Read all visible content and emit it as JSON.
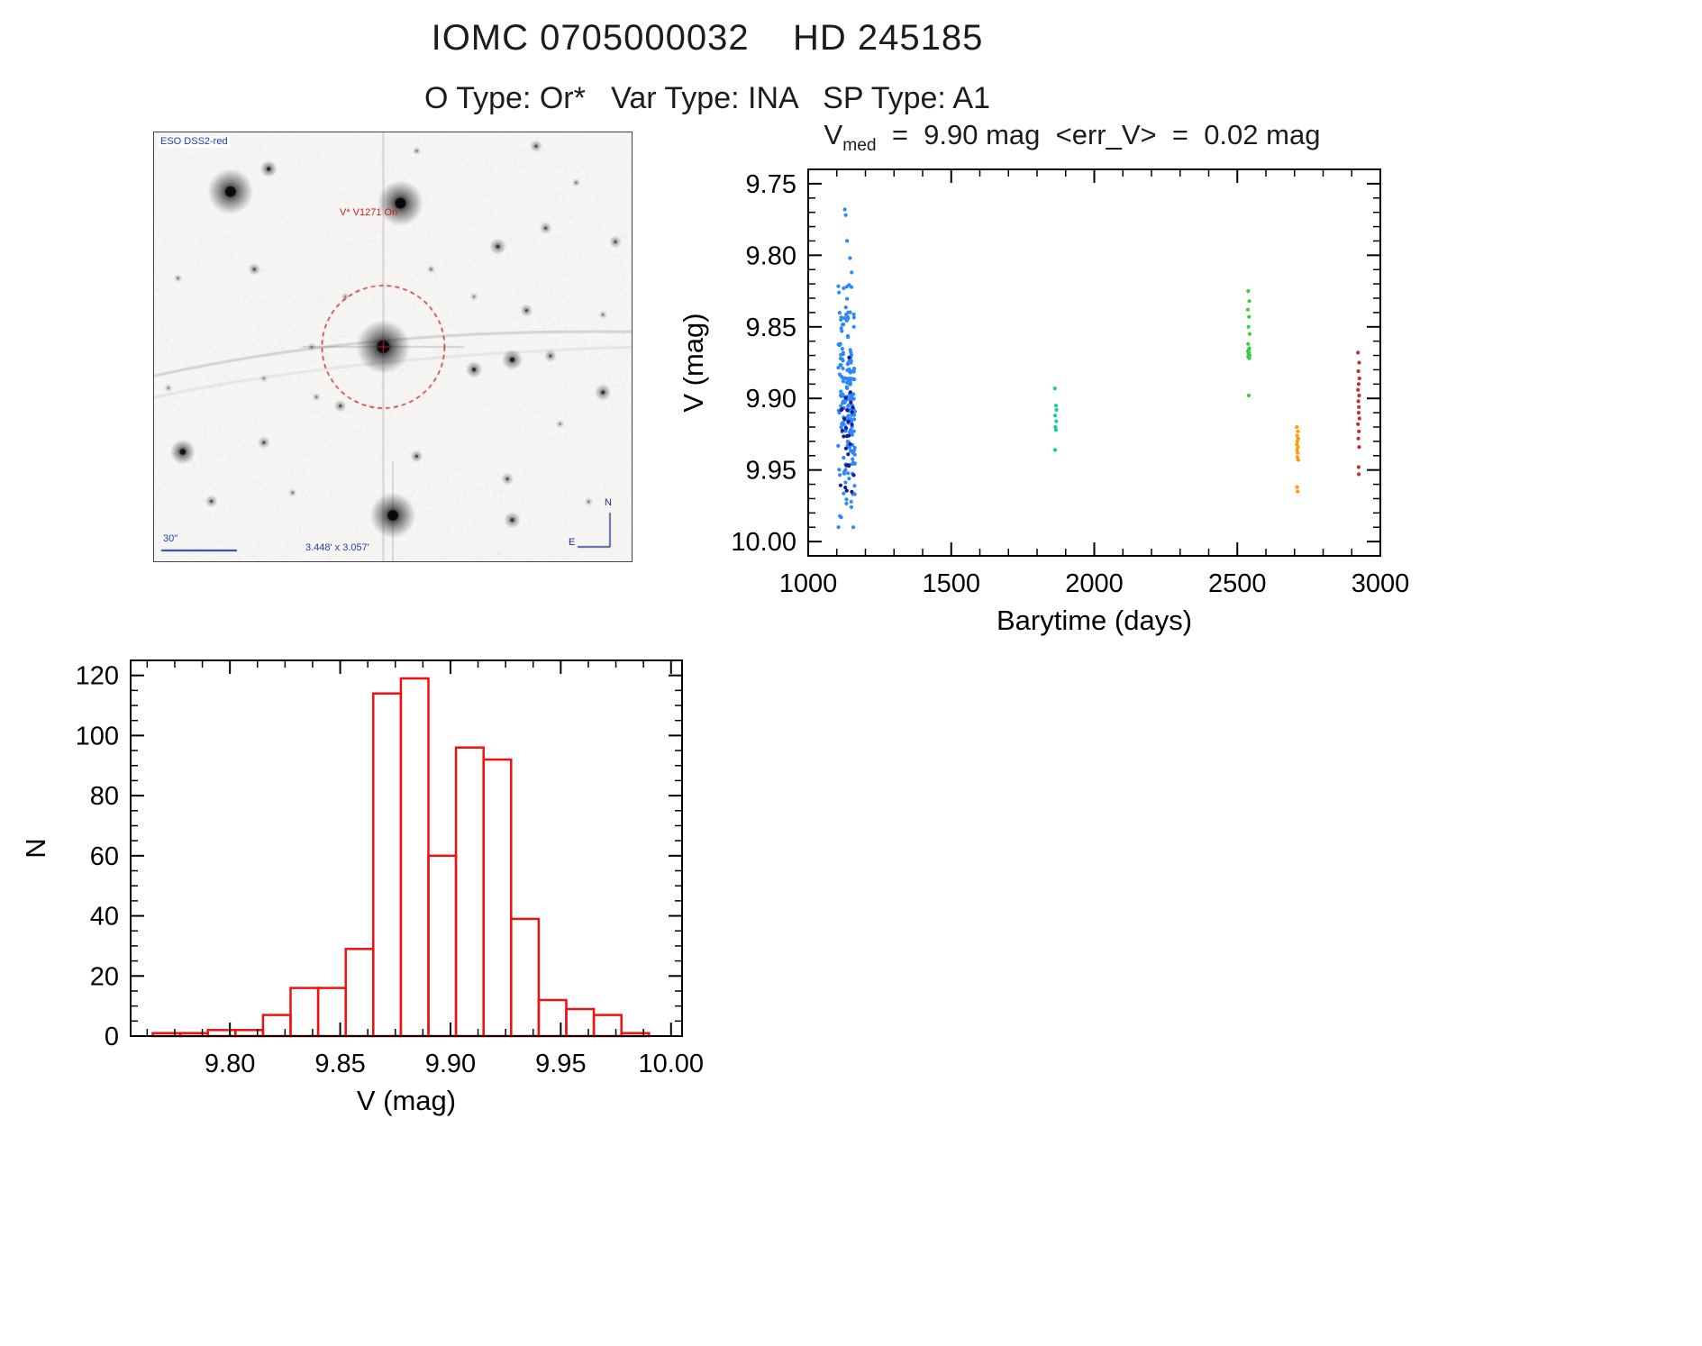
{
  "page": {
    "title": "IOMC 0705000032    HD 245185",
    "subtitle": "O Type: Or*   Var Type: INA   SP Type: A1"
  },
  "starfield": {
    "survey_label": "ESO DSS2-red",
    "target_label": "V* V1271 Ori",
    "scale_label": "30\"",
    "fov_label": "3.448' x 3.057'",
    "compass_n": "N",
    "compass_e": "E",
    "circle_color": "#bb2222",
    "circle": [
      0.48,
      0.5
    ],
    "circle_r": 68,
    "noise_seed": 3,
    "stars": [
      [
        0.16,
        0.138,
        11,
        0.95
      ],
      [
        0.24,
        0.085,
        4,
        0.7
      ],
      [
        0.516,
        0.165,
        11,
        0.97
      ],
      [
        0.55,
        0.043,
        2,
        0.4
      ],
      [
        0.8,
        0.032,
        3,
        0.5
      ],
      [
        0.884,
        0.117,
        2,
        0.4
      ],
      [
        0.72,
        0.266,
        4,
        0.6
      ],
      [
        0.82,
        0.223,
        3,
        0.5
      ],
      [
        0.966,
        0.255,
        3,
        0.5
      ],
      [
        0.05,
        0.34,
        2,
        0.4
      ],
      [
        0.21,
        0.319,
        3,
        0.5
      ],
      [
        0.58,
        0.319,
        2,
        0.4
      ],
      [
        0.67,
        0.383,
        2,
        0.35
      ],
      [
        0.4,
        0.383,
        2,
        0.35
      ],
      [
        0.48,
        0.5,
        13,
        1.0,
        1
      ],
      [
        0.67,
        0.553,
        4,
        0.65
      ],
      [
        0.75,
        0.53,
        5,
        0.7
      ],
      [
        0.83,
        0.521,
        3,
        0.5
      ],
      [
        0.94,
        0.606,
        4,
        0.6
      ],
      [
        0.78,
        0.415,
        3,
        0.55
      ],
      [
        0.94,
        0.425,
        2,
        0.4
      ],
      [
        0.39,
        0.638,
        3,
        0.5
      ],
      [
        0.34,
        0.617,
        2,
        0.4
      ],
      [
        0.55,
        0.755,
        3,
        0.55
      ],
      [
        0.23,
        0.723,
        3,
        0.5
      ],
      [
        0.06,
        0.745,
        6,
        0.85
      ],
      [
        0.03,
        0.596,
        2,
        0.35
      ],
      [
        0.12,
        0.86,
        3,
        0.5
      ],
      [
        0.29,
        0.84,
        2,
        0.4
      ],
      [
        0.5,
        0.893,
        11,
        0.97,
        2
      ],
      [
        0.74,
        0.808,
        3,
        0.5
      ],
      [
        0.75,
        0.904,
        4,
        0.6
      ],
      [
        0.91,
        0.861,
        2,
        0.4
      ],
      [
        0.85,
        0.68,
        2,
        0.35
      ],
      [
        0.33,
        0.5,
        2,
        0.35
      ],
      [
        0.23,
        0.574,
        2,
        0.3
      ]
    ]
  },
  "scatter_title": {
    "v": "V",
    "sub": "med",
    "rest": "  =  9.90 mag  <err_V>  =  0.02 mag"
  },
  "chart_data": [
    {
      "id": "lightcurve",
      "type": "scatter",
      "xlabel": "Barytime (days)",
      "ylabel": "V (mag)",
      "xlim": [
        1000,
        3000
      ],
      "ylim": [
        9.74,
        10.01
      ],
      "xticks": [
        1000,
        1500,
        2000,
        2500,
        3000
      ],
      "yticks": [
        9.75,
        9.8,
        9.85,
        9.9,
        9.95,
        10.0
      ],
      "xminor": 100,
      "yminor": 0.01,
      "xdec": 0,
      "ydec": 2,
      "ylabel_x": 40,
      "grid": false,
      "legend": false,
      "series": [
        {
          "name": "epoch1-blue",
          "color": "#2e86ff",
          "marker_px": 2.1,
          "cluster": {
            "seed": 7,
            "n": 185,
            "x_min": 1105,
            "x_max": 1165,
            "y_mean": 9.902,
            "y_sigma": 0.038,
            "y_min": 9.765,
            "y_max": 9.99
          }
        },
        {
          "name": "epoch1-navy",
          "color": "#1a1a8c",
          "marker_px": 2.1,
          "cluster": {
            "seed": 11,
            "n": 28,
            "x_min": 1112,
            "x_max": 1160,
            "y_mean": 9.93,
            "y_sigma": 0.025,
            "y_min": 9.83,
            "y_max": 9.99
          }
        },
        {
          "name": "epoch1-outliers",
          "color": "#2e86ff",
          "marker_px": 2.1,
          "points": [
            [
              1128,
              9.768
            ],
            [
              1131,
              9.772
            ],
            [
              1136,
              9.79
            ],
            [
              1146,
              9.802
            ],
            [
              1152,
              9.812
            ],
            [
              1124,
              9.823
            ]
          ]
        },
        {
          "name": "epoch2-teal",
          "color": "#0ccf9c",
          "marker_px": 2.1,
          "points": [
            [
              1862,
              9.893
            ],
            [
              1866,
              9.905
            ],
            [
              1863,
              9.912
            ],
            [
              1868,
              9.908
            ],
            [
              1867,
              9.916
            ],
            [
              1864,
              9.92
            ],
            [
              1866,
              9.922
            ],
            [
              1863,
              9.936
            ]
          ]
        },
        {
          "name": "epoch3-green",
          "color": "#3ecc3e",
          "marker_px": 2.1,
          "points": [
            [
              2538,
              9.825
            ],
            [
              2542,
              9.832
            ],
            [
              2537,
              9.838
            ],
            [
              2541,
              9.843
            ],
            [
              2539,
              9.85
            ],
            [
              2543,
              9.855
            ],
            [
              2538,
              9.862
            ],
            [
              2542,
              9.865
            ],
            [
              2540,
              9.866
            ],
            [
              2537,
              9.867
            ],
            [
              2541,
              9.868
            ],
            [
              2539,
              9.869
            ],
            [
              2543,
              9.87
            ],
            [
              2538,
              9.871
            ],
            [
              2542,
              9.872
            ],
            [
              2540,
              9.898
            ]
          ]
        },
        {
          "name": "epoch4-orange",
          "color": "#ff9d00",
          "marker_px": 2.1,
          "points": [
            [
              2708,
              9.92
            ],
            [
              2712,
              9.923
            ],
            [
              2709,
              9.926
            ],
            [
              2713,
              9.928
            ],
            [
              2710,
              9.93
            ],
            [
              2708,
              9.932
            ],
            [
              2712,
              9.934
            ],
            [
              2709,
              9.936
            ],
            [
              2711,
              9.938
            ],
            [
              2710,
              9.941
            ],
            [
              2713,
              9.943
            ],
            [
              2709,
              9.962
            ],
            [
              2711,
              9.965
            ]
          ]
        },
        {
          "name": "epoch5-red",
          "color": "#c03030",
          "marker_px": 2.1,
          "points": [
            [
              2922,
              9.868
            ],
            [
              2926,
              9.875
            ],
            [
              2923,
              9.881
            ],
            [
              2927,
              9.886
            ],
            [
              2924,
              9.89
            ],
            [
              2922,
              9.894
            ],
            [
              2926,
              9.898
            ],
            [
              2923,
              9.902
            ],
            [
              2925,
              9.906
            ],
            [
              2924,
              9.91
            ],
            [
              2927,
              9.914
            ],
            [
              2922,
              9.918
            ],
            [
              2925,
              9.923
            ],
            [
              2923,
              9.928
            ],
            [
              2926,
              9.934
            ],
            [
              2924,
              9.948
            ],
            [
              2925,
              9.953
            ]
          ]
        }
      ]
    },
    {
      "id": "histogram",
      "type": "bar",
      "xlabel": "V (mag)",
      "ylabel": "N",
      "xlim": [
        9.755,
        10.005
      ],
      "ylim": [
        0,
        125
      ],
      "xticks": [
        9.8,
        9.85,
        9.9,
        9.95,
        10.0
      ],
      "yticks": [
        0,
        20,
        40,
        60,
        80,
        100,
        120
      ],
      "xminor": 0.0125,
      "yminor": 5,
      "xdec": 2,
      "ydec": 0,
      "ylabel_x": 30,
      "grid": false,
      "legend": false,
      "bar_color": "#ee1111",
      "bins": {
        "start": 9.765,
        "width": 0.0125
      },
      "counts": [
        1,
        1,
        2,
        2,
        7,
        16,
        16,
        29,
        114,
        119,
        60,
        96,
        92,
        39,
        12,
        9,
        7,
        1
      ]
    }
  ]
}
